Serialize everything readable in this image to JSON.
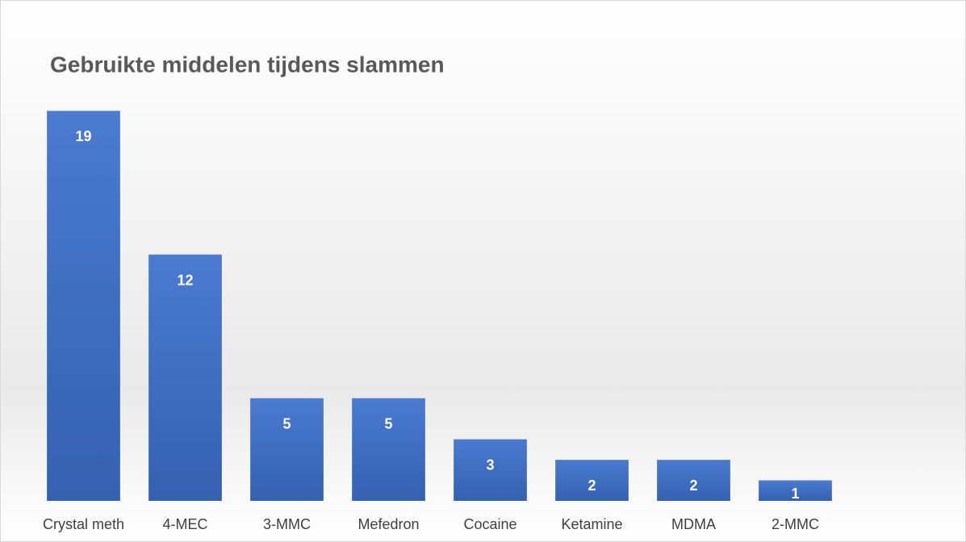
{
  "chart_data": {
    "type": "bar",
    "title": "Gebruikte middelen tijdens slammen",
    "categories": [
      "Crystal meth",
      "4-MEC",
      "3-MMC",
      "Mefedron",
      "Cocaine",
      "Ketamine",
      "MDMA",
      "2-MMC"
    ],
    "values": [
      19,
      12,
      5,
      5,
      3,
      2,
      2,
      1
    ],
    "color": "#4472c4",
    "ylim": [
      0,
      20
    ]
  }
}
